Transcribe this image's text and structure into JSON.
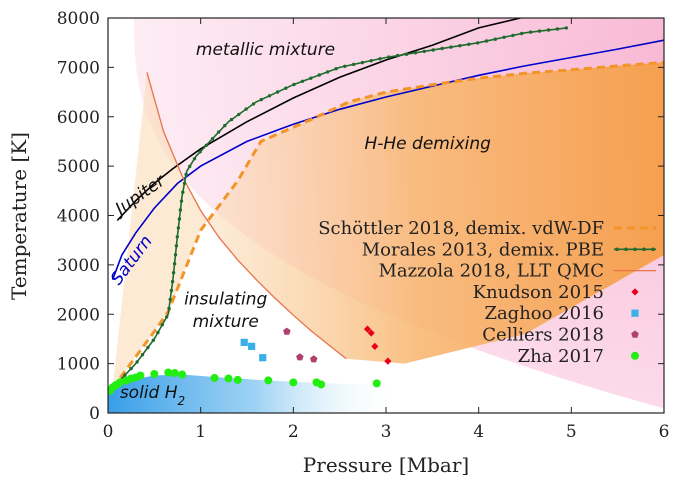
{
  "chart_data": {
    "type": "scatter",
    "title": "",
    "xlabel": "Pressure [Mbar]",
    "ylabel": "Temperature [K]",
    "xlim": [
      0,
      6
    ],
    "ylim": [
      0,
      8000
    ],
    "xticks": [
      "0",
      "1",
      "2",
      "3",
      "4",
      "5",
      "6"
    ],
    "yticks": [
      "0",
      "1000",
      "2000",
      "3000",
      "4000",
      "5000",
      "6000",
      "7000",
      "8000"
    ],
    "grid": false,
    "legend_position": "right",
    "colors": {
      "pink_region": "#f9c6dd",
      "orange_region": "#f7a55a",
      "solid_region": "#3a9fe8",
      "jupiter": "#000000",
      "saturn": "#0000cc",
      "schottler": "#f29427",
      "morales": "#1f6b2e",
      "mazzola": "#e8734a",
      "knudson": "#e6001a",
      "zaghoo": "#3ab0e8",
      "celliers": "#b0406e",
      "zha": "#22ee11"
    },
    "region_labels": [
      {
        "text": "metallic mixture",
        "x": 1.7,
        "y": 7250
      },
      {
        "text": "H-He demixing",
        "x": 3.45,
        "y": 5350
      },
      {
        "text": "insulating",
        "x": 1.27,
        "y": 2200
      },
      {
        "text": "mixture",
        "x": 1.27,
        "y": 1740
      },
      {
        "text": "Jupiter",
        "x": 0.38,
        "y": 4330,
        "rotate": -35
      },
      {
        "text": "Saturn",
        "x": 0.3,
        "y": 3030,
        "rotate": -53
      },
      {
        "text": "solid H",
        "sub": "2",
        "x": 0.48,
        "y": 300
      }
    ],
    "series": [
      {
        "name": "Jupiter",
        "kind": "line",
        "x": [
          0.1,
          0.3,
          0.5,
          0.7,
          1.0,
          1.5,
          2.0,
          2.5,
          3.0,
          3.5,
          4.0,
          4.45
        ],
        "y": [
          3900,
          4300,
          4650,
          4950,
          5350,
          5900,
          6380,
          6800,
          7150,
          7450,
          7800,
          8000
        ]
      },
      {
        "name": "Saturn",
        "kind": "line",
        "x": [
          0.05,
          0.15,
          0.3,
          0.5,
          0.75,
          1.0,
          1.5,
          2.0,
          2.5,
          3.0,
          3.5,
          4.0,
          4.5,
          5.0,
          5.5,
          6.0
        ],
        "y": [
          2700,
          3200,
          3650,
          4150,
          4650,
          5000,
          5500,
          5850,
          6150,
          6400,
          6620,
          6840,
          7030,
          7200,
          7370,
          7550
        ]
      },
      {
        "name": "Schöttler 2018, demix. vdW-DF",
        "kind": "dashed-area",
        "x": [
          0.05,
          0.5,
          0.65,
          1.0,
          1.4,
          1.65,
          2.2,
          2.6,
          3.0,
          3.5,
          4.0,
          4.5,
          5.0,
          5.5,
          6.0
        ],
        "y": [
          500,
          1650,
          2050,
          3700,
          4700,
          5500,
          5950,
          6300,
          6500,
          6650,
          6780,
          6880,
          6950,
          7030,
          7100
        ]
      },
      {
        "name": "Morales 2013, demix. PBE",
        "kind": "line-dots",
        "x": [
          0.05,
          0.3,
          0.5,
          0.65,
          0.7,
          0.75,
          0.8,
          0.85,
          0.95,
          1.1,
          1.3,
          1.6,
          2.0,
          2.5,
          3.0,
          3.5,
          4.0,
          4.5,
          4.95
        ],
        "y": [
          500,
          1000,
          1500,
          2000,
          2700,
          3600,
          4400,
          4900,
          5200,
          5500,
          5900,
          6300,
          6650,
          7000,
          7200,
          7350,
          7500,
          7700,
          7800
        ]
      },
      {
        "name": "Mazzola 2018, LLT QMC",
        "kind": "line",
        "x": [
          0.42,
          0.6,
          0.8,
          1.0,
          1.2,
          1.4,
          1.6,
          1.8,
          2.0,
          2.2,
          2.4,
          2.57
        ],
        "y": [
          6900,
          5700,
          4800,
          4100,
          3550,
          3100,
          2700,
          2330,
          1980,
          1650,
          1350,
          1100
        ]
      },
      {
        "name": "Knudson 2015",
        "kind": "scatter",
        "marker": "diamond",
        "x": [
          2.8,
          2.84,
          2.88,
          3.02
        ],
        "y": [
          1700,
          1620,
          1350,
          1050
        ]
      },
      {
        "name": "Zaghoo 2016",
        "kind": "scatter",
        "marker": "square",
        "x": [
          1.47,
          1.55,
          1.67
        ],
        "y": [
          1430,
          1350,
          1120
        ]
      },
      {
        "name": "Celliers 2018",
        "kind": "scatter",
        "marker": "pentagon",
        "x": [
          1.93,
          2.07,
          2.22
        ],
        "y": [
          1650,
          1130,
          1090
        ]
      },
      {
        "name": "Zha 2017",
        "kind": "scatter",
        "marker": "circle",
        "x": [
          0.02,
          0.05,
          0.08,
          0.1,
          0.13,
          0.2,
          0.25,
          0.3,
          0.35,
          0.5,
          0.65,
          0.72,
          0.8,
          1.15,
          1.3,
          1.4,
          1.73,
          2.0,
          2.25,
          2.3,
          2.9
        ],
        "y": [
          450,
          520,
          560,
          580,
          620,
          660,
          700,
          720,
          760,
          790,
          820,
          810,
          780,
          710,
          700,
          670,
          660,
          620,
          620,
          580,
          600
        ]
      }
    ]
  }
}
